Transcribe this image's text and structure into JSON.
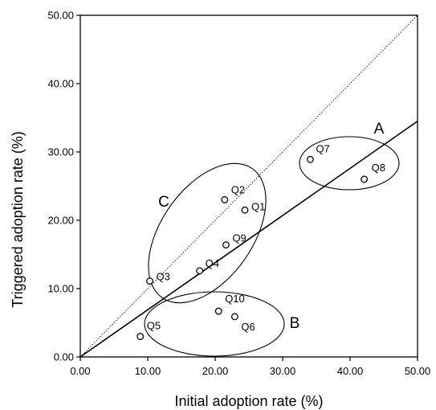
{
  "chart_data": {
    "type": "scatter",
    "xlabel": "Initial adoption rate (%)",
    "ylabel": "Triggered adoption rate (%)",
    "xlim": [
      0,
      50
    ],
    "ylim": [
      0,
      50
    ],
    "xticks": [
      "0.00",
      "10.00",
      "20.00",
      "30.00",
      "40.00",
      "50.00"
    ],
    "yticks": [
      "0.00",
      "10.00",
      "20.00",
      "30.00",
      "40.00",
      "50.00"
    ],
    "grid": false,
    "points": [
      {
        "label": "Q1",
        "x": 24.4,
        "y": 21.5
      },
      {
        "label": "Q2",
        "x": 21.4,
        "y": 23.0
      },
      {
        "label": "Q3",
        "x": 10.3,
        "y": 11.1
      },
      {
        "label": "Q4",
        "x": 17.7,
        "y": 12.6
      },
      {
        "label": "Q5",
        "x": 8.9,
        "y": 3.0
      },
      {
        "label": "Q6",
        "x": 22.9,
        "y": 5.9
      },
      {
        "label": "Q7",
        "x": 34.1,
        "y": 28.9
      },
      {
        "label": "Q8",
        "x": 42.1,
        "y": 26.0
      },
      {
        "label": "Q9",
        "x": 21.6,
        "y": 16.4
      },
      {
        "label": "Q10",
        "x": 20.5,
        "y": 6.7
      }
    ],
    "reference_lines": [
      {
        "kind": "diagonal",
        "style": "dotted",
        "from": [
          0,
          0
        ],
        "to": [
          50,
          50
        ]
      },
      {
        "kind": "fit",
        "style": "solid",
        "from": [
          0,
          0
        ],
        "to": [
          50,
          34.5
        ]
      }
    ],
    "groups": [
      {
        "label": "A",
        "members": [
          "Q7",
          "Q8"
        ]
      },
      {
        "label": "B",
        "members": [
          "Q5",
          "Q6",
          "Q10"
        ]
      },
      {
        "label": "C",
        "members": [
          "Q1",
          "Q2",
          "Q3",
          "Q4",
          "Q9"
        ]
      }
    ]
  }
}
